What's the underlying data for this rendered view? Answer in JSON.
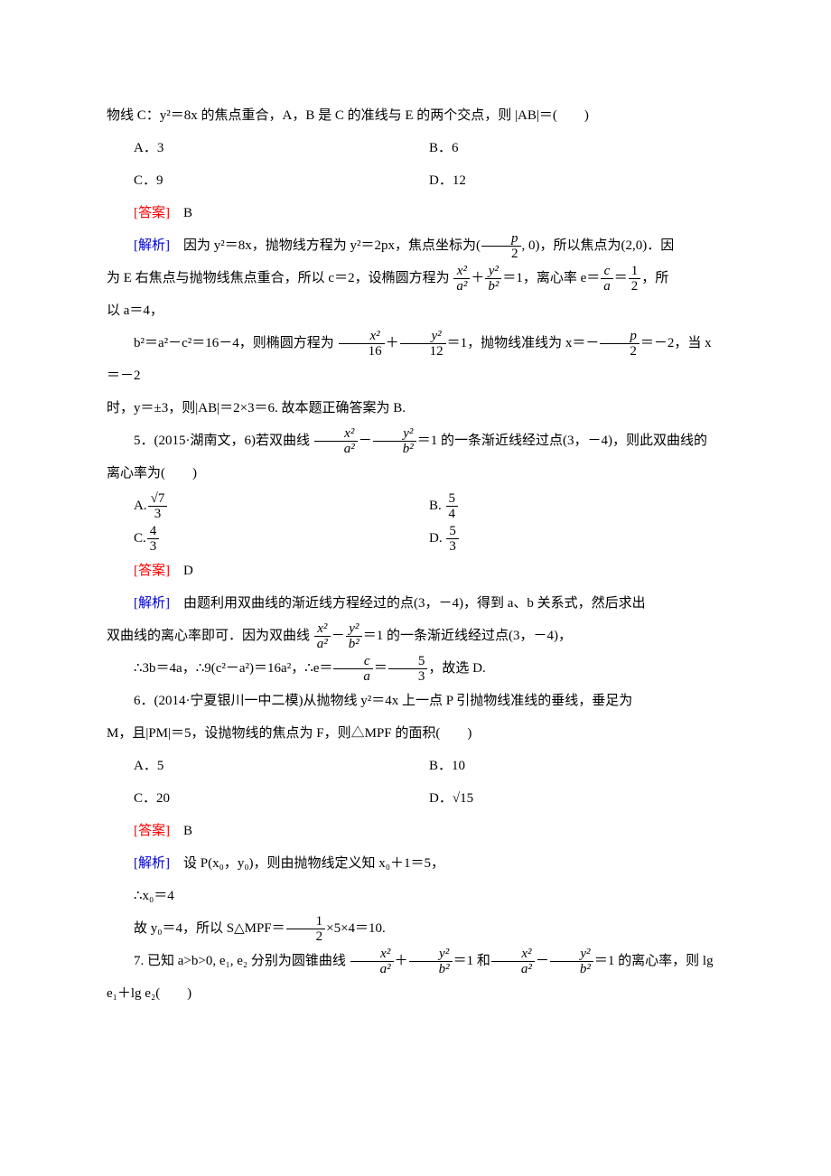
{
  "q4": {
    "stem_line1": "物线 C：y²＝8x 的焦点重合，A，B 是 C 的准线与 E 的两个交点，则 |AB|＝(　　)",
    "optA": "A．3",
    "optB": "B．6",
    "optC": "C．9",
    "optD": "D．12",
    "answer_label": "[答案]",
    "answer_value": "　B",
    "analysis_label": "[解析]",
    "analysis_p1_a": "　因为 y²＝8x，抛物线方程为 y²＝2px，焦点坐标为(",
    "analysis_p1_frac_num": "p",
    "analysis_p1_frac_den": "2",
    "analysis_p1_b": ", 0)，所以焦点为(2,0)．因",
    "analysis_p2_a": "为 E 右焦点与抛物线焦点重合，所以 c＝2，设椭圆方程为",
    "analysis_p2_b": "＝1，离心率 e＝",
    "analysis_p2_c": "，所",
    "analysis_p3": "以 a＝4，",
    "analysis_p4_a": "b²＝a²－c²＝16－4，则椭圆方程为",
    "analysis_p4_b": "＝1，抛物线准线为 x＝－",
    "analysis_p4_c": "＝－2，当 x＝－2",
    "analysis_p5": "时，y＝±3，则|AB|＝2×3＝6. 故本题正确答案为 B."
  },
  "q5": {
    "stem_a": "5．(2015·湖南文，6)若双曲线",
    "stem_b": "＝1 的一条渐近线经过点(3，－4)，则此双曲线的",
    "stem_c": "离心率为(　　)",
    "optA_pre": "A.",
    "optA_num": "√7",
    "optA_den": "3",
    "optB_pre": "B. ",
    "optB_num": "5",
    "optB_den": "4",
    "optC_pre": "C.",
    "optC_num": "4",
    "optC_den": "3",
    "optD_pre": "D. ",
    "optD_num": "5",
    "optD_den": "3",
    "answer_label": "[答案]",
    "answer_value": "　D",
    "analysis_label": "[解析]",
    "analysis_p1": "　由题利用双曲线的渐近线方程经过的点(3，－4)，得到 a、b 关系式，然后求出",
    "analysis_p2_a": "双曲线的离心率即可．因为双曲线",
    "analysis_p2_b": "＝1 的一条渐近线经过点(3，－4)，",
    "analysis_p3_a": "∴3b＝4a，∴9(c²－a²)＝16a²，∴e＝",
    "analysis_p3_b": "，故选 D."
  },
  "q6": {
    "stem_a": "6．(2014·宁夏银川一中二模)从抛物线 y²＝4x 上一点 P 引抛物线准线的垂线，垂足为",
    "stem_b": "M，且|PM|＝5，设抛物线的焦点为 F，则△MPF 的面积(　　)",
    "optA": "A．5",
    "optB": "B．10",
    "optC": "C．20",
    "optD": "D．√15",
    "answer_label": "[答案]",
    "answer_value": "　B",
    "analysis_label": "[解析]",
    "analysis_p1": "　设 P(x₀，y₀)，则由抛物线定义知 x₀＋1＝5，",
    "analysis_p2": "∴x₀＝4",
    "analysis_p3_a": "故 y₀＝4，所以 S△MPF＝",
    "analysis_p3_b": "×5×4＝10."
  },
  "q7": {
    "stem_a": "7. 已知 a>b>0, e₁, e₂ 分别为圆锥曲线",
    "stem_b": "＝1 和",
    "stem_c": "＝1 的离心率，则 lg e₁＋lg e₂(　　)"
  },
  "frac": {
    "x2": "x²",
    "y2": "y²",
    "a2": "a²",
    "b2": "b²",
    "c": "c",
    "a": "a",
    "one": "1",
    "two": "2",
    "sixteen": "16",
    "twelve": "12",
    "p": "p",
    "five": "5",
    "three": "3"
  }
}
